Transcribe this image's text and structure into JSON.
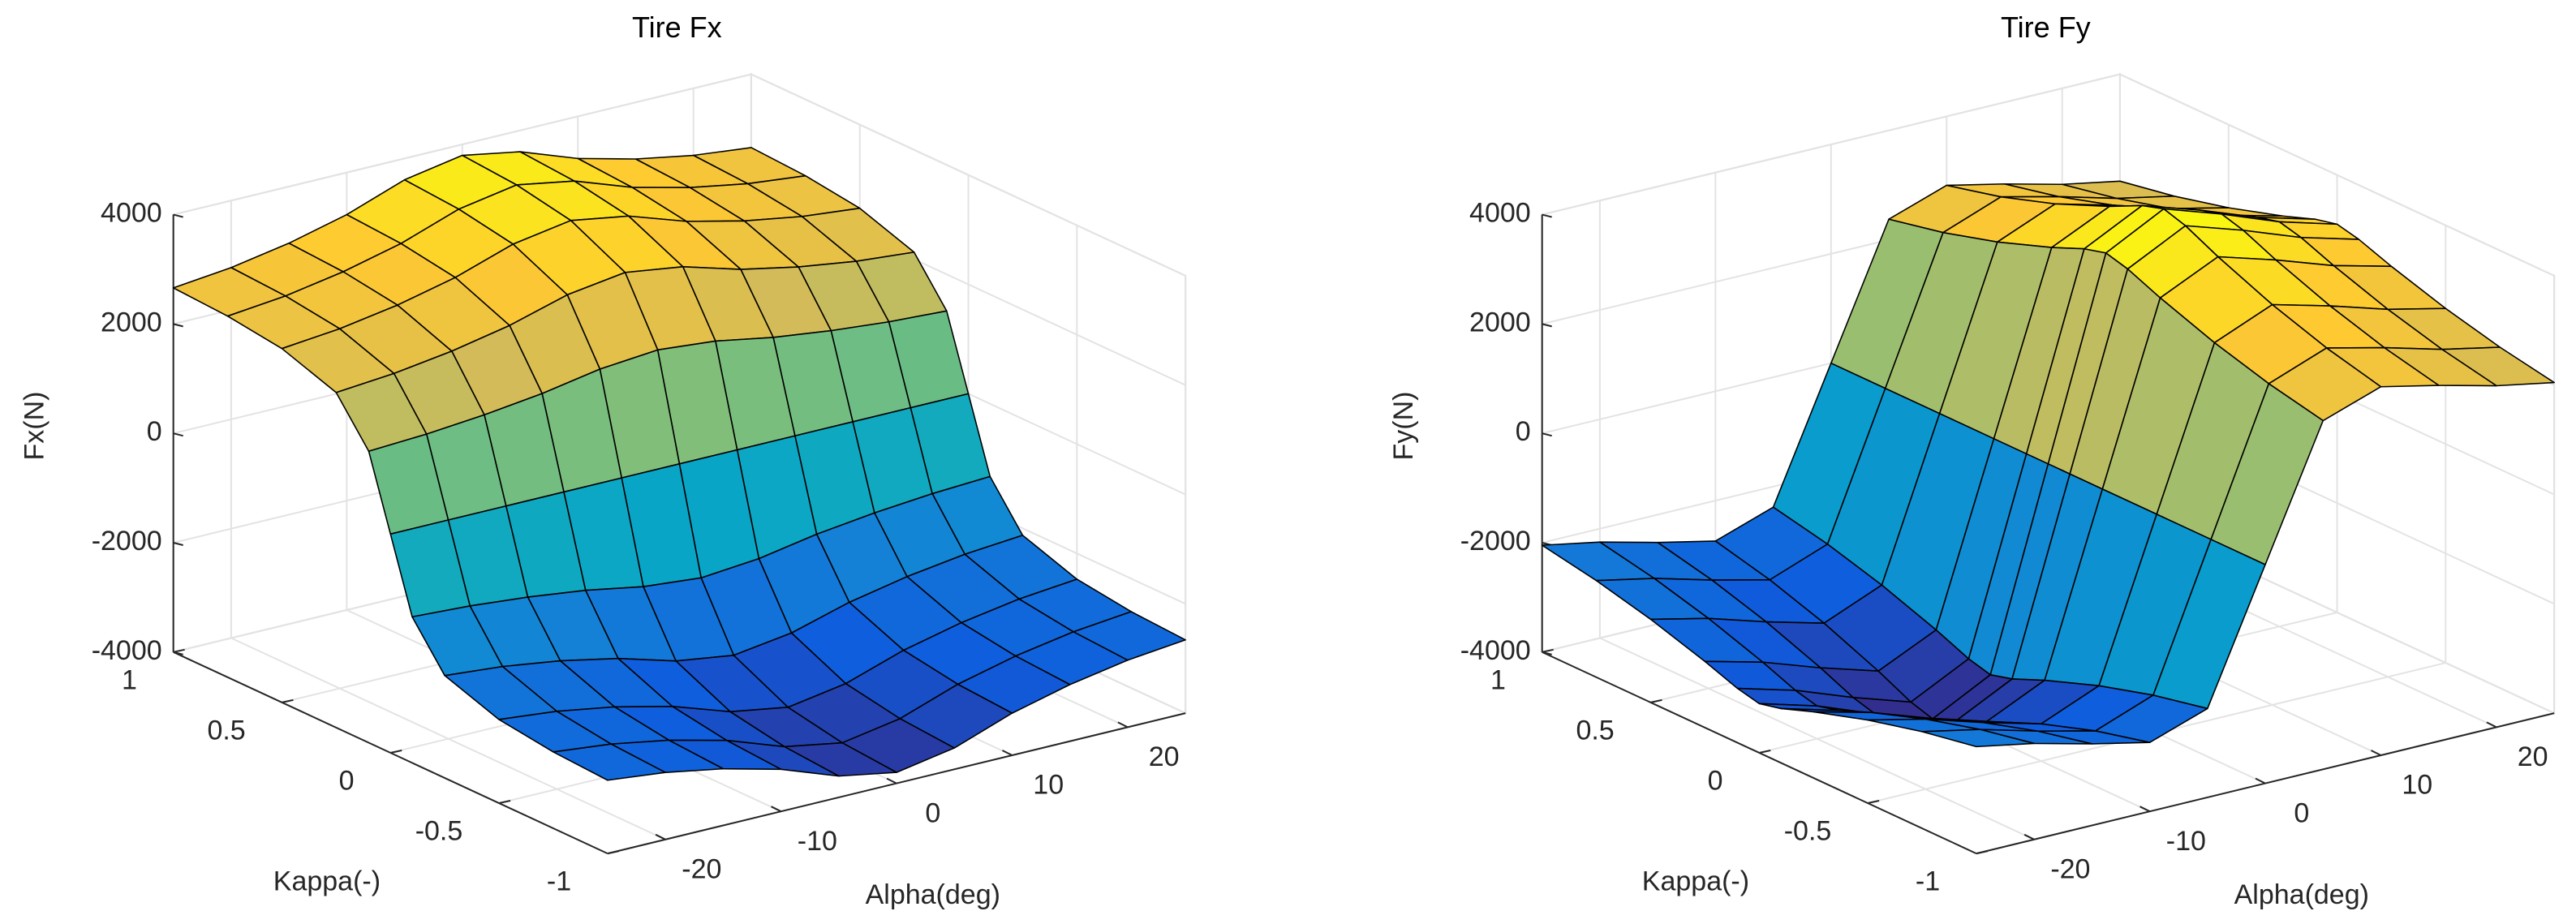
{
  "chart_data": [
    {
      "type": "surface",
      "title": "Tire Fx",
      "xlabel": "Alpha(deg)",
      "ylabel": "Kappa(-)",
      "zlabel": "Fx(N)",
      "x": [
        -25,
        -20,
        -15,
        -10,
        -5,
        0,
        5,
        10,
        15,
        20,
        25
      ],
      "y": [
        -1,
        -0.75,
        -0.5,
        -0.25,
        -0.1,
        0,
        0.1,
        0.25,
        0.5,
        0.75,
        1
      ],
      "z": [
        [
          -2660,
          -2774,
          -2964,
          -3230,
          -3610,
          -3800,
          -3610,
          -3230,
          -2964,
          -2774,
          -2660
        ],
        [
          -2604,
          -2716,
          -2902,
          -3162,
          -3534,
          -3720,
          -3534,
          -3162,
          -2902,
          -2716,
          -2604
        ],
        [
          -2471,
          -2577,
          -2753,
          -3001,
          -3354,
          -3530,
          -3354,
          -3001,
          -2753,
          -2577,
          -2471
        ],
        [
          -2128,
          -2219,
          -2371,
          -2584,
          -2888,
          -3040,
          -2888,
          -2584,
          -2371,
          -2219,
          -2128
        ],
        [
          -1330,
          -1387,
          -1482,
          -1615,
          -1805,
          -1900,
          -1805,
          -1615,
          -1482,
          -1387,
          -1330
        ],
        [
          0,
          0,
          0,
          0,
          0,
          0,
          0,
          0,
          0,
          0,
          0
        ],
        [
          1330,
          1387,
          1482,
          1615,
          1805,
          1900,
          1805,
          1615,
          1482,
          1387,
          1330
        ],
        [
          2128,
          2219,
          2371,
          2584,
          2888,
          3040,
          2888,
          2584,
          2371,
          2219,
          2128
        ],
        [
          2471,
          2577,
          2753,
          3001,
          3354,
          3530,
          3354,
          3001,
          2753,
          2577,
          2471
        ],
        [
          2604,
          2716,
          2902,
          3162,
          3534,
          3720,
          3534,
          3162,
          2902,
          2716,
          2604
        ],
        [
          2660,
          2774,
          2964,
          3230,
          3610,
          3800,
          3610,
          3230,
          2964,
          2774,
          2660
        ]
      ],
      "xlim": [
        -25,
        25
      ],
      "ylim": [
        -1,
        1
      ],
      "zlim": [
        -4000,
        4000
      ],
      "xticks": [
        -20,
        -10,
        0,
        10,
        20
      ],
      "yticks": [
        -1,
        -0.5,
        0,
        0.5,
        1
      ],
      "zticks": [
        -4000,
        -2000,
        0,
        2000,
        4000
      ],
      "grid": true,
      "edge_color": "#000000",
      "colormap": [
        "#352a87",
        "#0f5cdd",
        "#1481d6",
        "#06a4ca",
        "#2eb7a4",
        "#87bf77",
        "#d1bb59",
        "#fec832",
        "#f9fb0e"
      ]
    },
    {
      "type": "surface",
      "title": "Tire Fy",
      "xlabel": "Alpha(deg)",
      "ylabel": "Kappa(-)",
      "zlabel": "Fy(N)",
      "x": [
        -25,
        -20,
        -15,
        -10,
        -5,
        0,
        5,
        10,
        15,
        20,
        25
      ],
      "y": [
        -1,
        -0.75,
        -0.5,
        -0.25,
        -0.1,
        0,
        0.1,
        0.25,
        0.5,
        0.75,
        1
      ],
      "z": [
        [
          -2046,
          -2244,
          -2508,
          -2739,
          -2376,
          0,
          2376,
          2739,
          2508,
          2244,
          2046
        ],
        [
          -2232,
          -2448,
          -2736,
          -2988,
          -2592,
          0,
          2592,
          2988,
          2736,
          2448,
          2232
        ],
        [
          -2480,
          -2720,
          -3040,
          -3320,
          -2880,
          0,
          2880,
          3320,
          3040,
          2720,
          2480
        ],
        [
          -2790,
          -3060,
          -3420,
          -3735,
          -3240,
          0,
          3240,
          3735,
          3420,
          3060,
          2790
        ],
        [
          -3007,
          -3298,
          -3686,
          -4026,
          -3492,
          0,
          3492,
          4026,
          3686,
          3298,
          3007
        ],
        [
          -3100,
          -3400,
          -3800,
          -4150,
          -3600,
          0,
          3600,
          4150,
          3800,
          3400,
          3100
        ],
        [
          -3007,
          -3298,
          -3686,
          -4026,
          -3492,
          0,
          3492,
          4026,
          3686,
          3298,
          3007
        ],
        [
          -2790,
          -3060,
          -3420,
          -3735,
          -3240,
          0,
          3240,
          3735,
          3420,
          3060,
          2790
        ],
        [
          -2480,
          -2720,
          -3040,
          -3320,
          -2880,
          0,
          2880,
          3320,
          3040,
          2720,
          2480
        ],
        [
          -2232,
          -2448,
          -2736,
          -2988,
          -2592,
          0,
          2592,
          2988,
          2736,
          2448,
          2232
        ],
        [
          -2046,
          -2244,
          -2508,
          -2739,
          -2376,
          0,
          2376,
          2739,
          2508,
          2244,
          2046
        ]
      ],
      "xlim": [
        -25,
        25
      ],
      "ylim": [
        -1,
        1
      ],
      "zlim": [
        -4000,
        4000
      ],
      "xticks": [
        -20,
        -10,
        0,
        10,
        20
      ],
      "yticks": [
        -1,
        -0.5,
        0,
        0.5,
        1
      ],
      "zticks": [
        -4000,
        -2000,
        0,
        2000,
        4000
      ],
      "grid": true,
      "edge_color": "#000000",
      "colormap": [
        "#352a87",
        "#0f5cdd",
        "#1481d6",
        "#06a4ca",
        "#2eb7a4",
        "#87bf77",
        "#d1bb59",
        "#fec832",
        "#f9fb0e"
      ]
    }
  ]
}
